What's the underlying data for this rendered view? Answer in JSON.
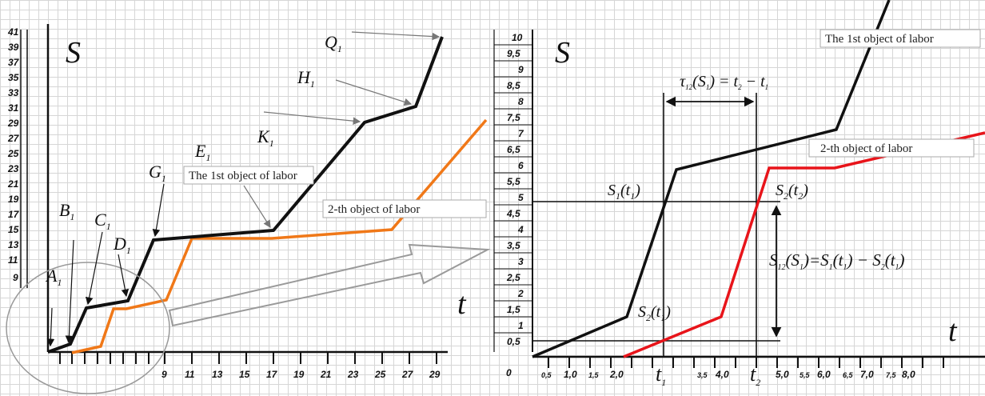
{
  "left_panel": {
    "y_axis_label": "S",
    "x_axis_label": "t",
    "y_ticks": [
      "41",
      "39",
      "37",
      "35",
      "33",
      "31",
      "29",
      "27",
      "25",
      "23",
      "21",
      "19",
      "17",
      "15",
      "13",
      "11",
      "9"
    ],
    "x_ticks": [
      "9",
      "11",
      "13",
      "15",
      "17",
      "19",
      "21",
      "23",
      "25",
      "27",
      "29"
    ],
    "point_labels": [
      {
        "id": "A",
        "letter": "A",
        "sub": "1"
      },
      {
        "id": "B",
        "letter": "B",
        "sub": "1"
      },
      {
        "id": "C",
        "letter": "C",
        "sub": "1"
      },
      {
        "id": "D",
        "letter": "D",
        "sub": "1"
      },
      {
        "id": "G",
        "letter": "G",
        "sub": "1"
      },
      {
        "id": "E",
        "letter": "E",
        "sub": "1"
      },
      {
        "id": "K",
        "letter": "K",
        "sub": "1"
      },
      {
        "id": "H",
        "letter": "H",
        "sub": "1"
      },
      {
        "id": "Q",
        "letter": "Q",
        "sub": "1"
      }
    ],
    "first_object_box": "The 1st object of labor",
    "second_object_box": "2-th object of labor",
    "colors": {
      "first": "#111111",
      "second": "#f07818"
    }
  },
  "right_panel": {
    "y_axis_label": "S",
    "x_axis_label": "t",
    "origin_label": "0",
    "y_ticks": [
      "10",
      "9,5",
      "9",
      "8,5",
      "8",
      "7,5",
      "7",
      "6,5",
      "6",
      "5,5",
      "5",
      "4,5",
      "4",
      "3,5",
      "3",
      "2,5",
      "2",
      "1,5",
      "1",
      "0,5"
    ],
    "x_ticks": [
      "0,5",
      "1,0",
      "1,5",
      "2,0",
      "3,5",
      "4,0",
      "5,0",
      "5,5",
      "6,0",
      "6,5",
      "7,0",
      "7,5",
      "8,0"
    ],
    "x_ticks_small": [
      "0,5",
      "1,5",
      "3,5",
      "5,5",
      "6,5",
      "7,5"
    ],
    "t1_label": {
      "letter": "t",
      "sub": "1"
    },
    "t2_label": {
      "letter": "t",
      "sub": "2"
    },
    "tau_formula": {
      "lhs_letter": "τ",
      "lhs_sub": "12",
      "arg_letter": "S",
      "arg_sub": "1",
      "rhs": "t",
      "rhs_sub1": "2",
      "rhs_sub2": "1"
    },
    "s1t1_label": {
      "letter": "S",
      "sub": "1",
      "arg": "t",
      "arg_sub": "1"
    },
    "s2t2_label": {
      "letter": "S",
      "sub": "2",
      "arg": "t",
      "arg_sub": "2"
    },
    "s2t1_label": {
      "letter": "S",
      "sub": "2",
      "arg": "t",
      "arg_sub": "1"
    },
    "s12_formula": {
      "letter": "S",
      "sub": "12",
      "arg": "S",
      "arg_sub": "1"
    },
    "first_object_box": "The 1st object of labor",
    "second_object_box": "2-th object of labor",
    "colors": {
      "first": "#111111",
      "second": "#e8141a"
    }
  }
}
